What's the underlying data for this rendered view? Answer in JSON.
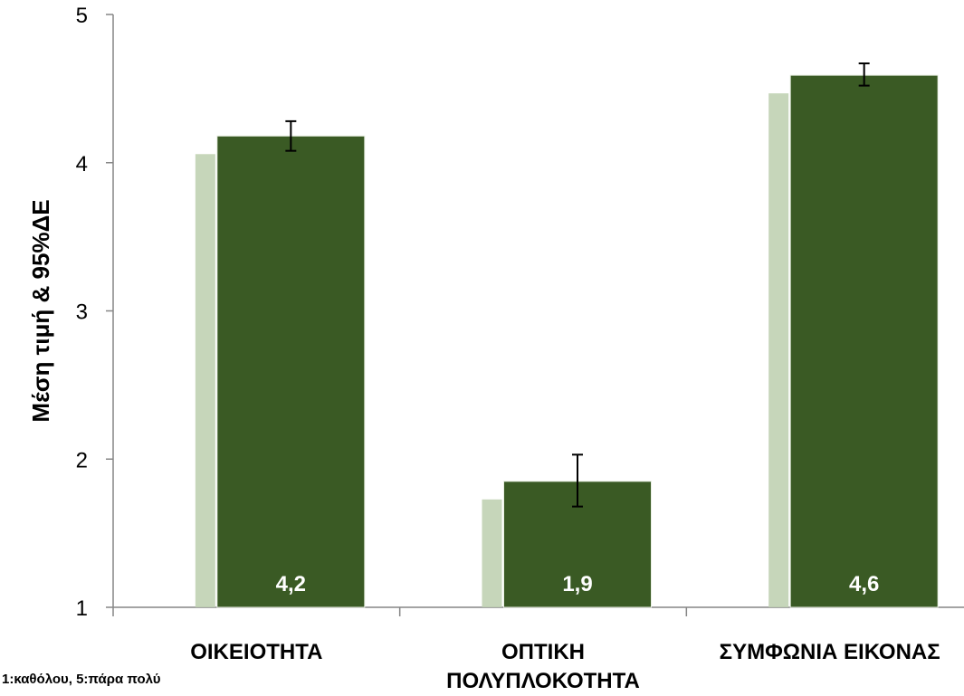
{
  "chart_data": {
    "type": "bar",
    "categories": [
      "ΟΙΚΕΙΟΤΗΤΑ",
      "ΟΠΤΙΚΗ ΠΟΛΥΠΛΟΚΟΤΗΤΑ",
      "ΣΥΜΦΩΝΙΑ ΕΙΚΟΝΑΣ"
    ],
    "category_lines": [
      [
        "ΟΙΚΕΙΟΤΗΤΑ"
      ],
      [
        "ΟΠΤΙΚΗ",
        "ΠΟΛΥΠΛΟΚΟΤΗΤΑ"
      ],
      [
        "ΣΥΜΦΩΝΙΑ ΕΙΚΟΝΑΣ"
      ]
    ],
    "values": [
      4.18,
      1.85,
      4.59
    ],
    "error_low": [
      4.08,
      1.68,
      4.52
    ],
    "error_high": [
      4.28,
      2.03,
      4.67
    ],
    "data_labels": [
      "4,2",
      "1,9",
      "4,6"
    ],
    "ylabel": "Μέση τιμή & 95%ΔΕ",
    "ylim": [
      1,
      5
    ],
    "yticks": [
      1,
      2,
      3,
      4,
      5
    ],
    "grid": false,
    "colors": {
      "bar": "#3a5a24",
      "shadow": "#c0d1b2",
      "error": "#000000"
    }
  },
  "footnote": "1:καθόλου, 5:πάρα πολύ"
}
